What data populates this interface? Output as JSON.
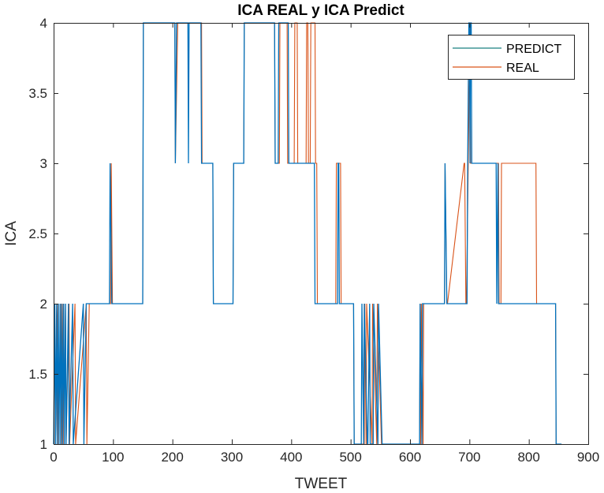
{
  "chart_data": {
    "type": "line",
    "title": "ICA REAL y ICA Predict",
    "xlabel": "TWEET",
    "ylabel": "ICA",
    "xlim": [
      0,
      900
    ],
    "ylim": [
      1,
      4
    ],
    "xticks": [
      0,
      100,
      200,
      300,
      400,
      500,
      600,
      700,
      800,
      900
    ],
    "yticks": [
      1,
      1.5,
      2,
      2.5,
      3,
      3.5,
      4
    ],
    "xtick_labels": [
      "0",
      "100",
      "200",
      "300",
      "400",
      "500",
      "600",
      "700",
      "800",
      "900"
    ],
    "ytick_labels": [
      "1",
      "1.5",
      "2",
      "2.5",
      "3",
      "3.5",
      "4"
    ],
    "grid": false,
    "legend_position": "top-right",
    "series": [
      {
        "name": "PREDICT",
        "color": "#0072BD",
        "legend_color": "#1a8080",
        "x": [
          0,
          2,
          3,
          5,
          6,
          8,
          9,
          11,
          12,
          14,
          15,
          17,
          18,
          20,
          21,
          25,
          26,
          32,
          33,
          50,
          51,
          55,
          56,
          94,
          95,
          98,
          99,
          150,
          151,
          204,
          205,
          207,
          208,
          226,
          227,
          228,
          229,
          248,
          249,
          268,
          269,
          302,
          303,
          320,
          321,
          372,
          373,
          378,
          379,
          395,
          396,
          439,
          440,
          443,
          444,
          478,
          479,
          480,
          481,
          482,
          483,
          505,
          506,
          518,
          519,
          522,
          523,
          528,
          529,
          532,
          533,
          538,
          539,
          546,
          547,
          553,
          554,
          616,
          617,
          620,
          621,
          658,
          659,
          662,
          663,
          696,
          697,
          699,
          700,
          701,
          702,
          703,
          704,
          745,
          746,
          748,
          749,
          812,
          813,
          845,
          846,
          855
        ],
        "y": [
          1,
          2,
          1,
          2,
          1,
          2,
          1,
          2,
          1,
          2,
          1,
          2,
          1,
          2,
          1,
          2,
          1,
          2,
          1,
          2,
          1,
          2,
          2,
          2,
          3,
          2,
          2,
          2,
          4,
          4,
          3,
          4,
          4,
          4,
          3,
          4,
          4,
          4,
          3,
          3,
          2,
          2,
          3,
          3,
          4,
          4,
          3,
          3,
          4,
          4,
          3,
          3,
          2,
          2,
          2,
          2,
          3,
          3,
          2,
          2,
          2,
          2,
          1,
          1,
          2,
          1,
          2,
          1,
          1,
          2,
          1,
          1,
          2,
          1,
          2,
          1,
          1,
          1,
          2,
          1,
          2,
          2,
          3,
          2,
          2,
          2,
          3,
          4,
          4,
          3,
          4,
          4,
          3,
          3,
          2,
          3,
          2,
          2,
          2,
          2,
          1,
          1
        ]
      },
      {
        "name": "REAL",
        "color": "#D95319",
        "legend_color": "#D95319",
        "x": [
          0,
          2,
          3,
          7,
          8,
          12,
          13,
          16,
          17,
          20,
          21,
          26,
          27,
          36,
          37,
          55,
          56,
          60,
          61,
          96,
          97,
          99,
          100,
          150,
          151,
          204,
          205,
          209,
          210,
          249,
          250,
          268,
          269,
          302,
          303,
          320,
          321,
          372,
          373,
          380,
          381,
          393,
          394,
          405,
          406,
          410,
          411,
          425,
          426,
          428,
          429,
          432,
          433,
          440,
          441,
          443,
          444,
          475,
          476,
          483,
          484,
          505,
          506,
          523,
          524,
          526,
          527,
          536,
          537,
          544,
          545,
          552,
          553,
          616,
          617,
          618,
          619,
          622,
          623,
          658,
          659,
          662,
          663,
          691,
          692,
          694,
          695,
          701,
          702,
          703,
          704,
          749,
          750,
          753,
          754,
          812,
          813,
          845,
          846,
          855
        ],
        "y": [
          1,
          2,
          1,
          2,
          1,
          2,
          1,
          2,
          1,
          2,
          1,
          2,
          1,
          2,
          1,
          2,
          1,
          2,
          2,
          2,
          3,
          2,
          2,
          2,
          4,
          4,
          3,
          4,
          4,
          4,
          3,
          3,
          2,
          2,
          3,
          3,
          4,
          4,
          3,
          3,
          4,
          4,
          3,
          3,
          4,
          4,
          3,
          3,
          4,
          4,
          3,
          3,
          4,
          4,
          3,
          3,
          2,
          2,
          3,
          3,
          2,
          2,
          1,
          1,
          2,
          1,
          2,
          1,
          2,
          1,
          2,
          1,
          1,
          1,
          2,
          1,
          2,
          1,
          2,
          2,
          3,
          2,
          2,
          3,
          3,
          2,
          2,
          4,
          3,
          3,
          3,
          3,
          2,
          2,
          3,
          3,
          2,
          2,
          1,
          1
        ]
      }
    ]
  }
}
